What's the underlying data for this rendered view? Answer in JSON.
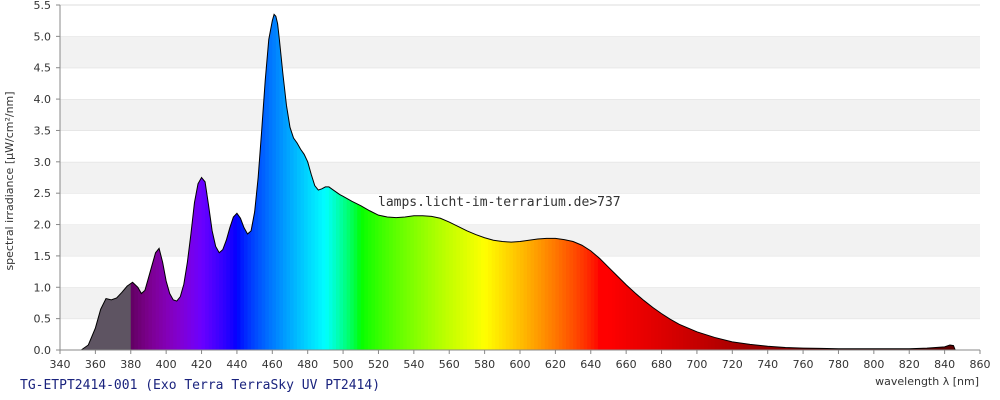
{
  "chart_data": {
    "type": "area",
    "title": "",
    "caption": "TG-ETPT2414-001 (Exo Terra TerraSky UV PT2414)",
    "watermark": "lamps.licht-im-terrarium.de>737",
    "xlabel": "wavelength λ [nm]",
    "ylabel": "spectral irradiance [µW/cm²/nm]",
    "xlim": [
      340,
      860
    ],
    "ylim": [
      0,
      5.5
    ],
    "x_ticks": [
      340,
      360,
      380,
      400,
      420,
      440,
      460,
      480,
      500,
      520,
      540,
      560,
      580,
      600,
      620,
      640,
      660,
      680,
      700,
      720,
      740,
      760,
      780,
      800,
      820,
      840,
      860
    ],
    "y_ticks": [
      0.0,
      0.5,
      1.0,
      1.5,
      2.0,
      2.5,
      3.0,
      3.5,
      4.0,
      4.5,
      5.0,
      5.5
    ],
    "y_tick_labels": [
      "0.0",
      "0.5",
      "1.0",
      "1.5",
      "2.0",
      "2.5",
      "3.0",
      "3.5",
      "4.0",
      "4.5",
      "5.0",
      "5.5"
    ],
    "grid": "horizontal banded",
    "fill": "spectral colors by wavelength",
    "series": [
      {
        "x": [
          352,
          356,
          360,
          363,
          366,
          369,
          372,
          375,
          378,
          381,
          384,
          386,
          388,
          390,
          392,
          394,
          396,
          398,
          400,
          402,
          404,
          406,
          408,
          410,
          412,
          414,
          416,
          418,
          420,
          422,
          424,
          426,
          428,
          430,
          432,
          434,
          436,
          438,
          440,
          442,
          444,
          446,
          448,
          450,
          452,
          454,
          456,
          458,
          460,
          461,
          462,
          463,
          464,
          466,
          468,
          470,
          472,
          474,
          476,
          478,
          480,
          482,
          484,
          486,
          488,
          490,
          492,
          494,
          496,
          498,
          500,
          505,
          510,
          515,
          520,
          525,
          530,
          535,
          540,
          545,
          550,
          555,
          560,
          565,
          570,
          575,
          580,
          585,
          590,
          595,
          600,
          605,
          610,
          615,
          620,
          625,
          630,
          635,
          640,
          645,
          650,
          655,
          660,
          665,
          670,
          675,
          680,
          685,
          690,
          695,
          700,
          710,
          720,
          730,
          740,
          750,
          760,
          770,
          780,
          790,
          800,
          810,
          820,
          830,
          840,
          843,
          845,
          846
        ],
        "y": [
          0.0,
          0.08,
          0.35,
          0.65,
          0.82,
          0.8,
          0.83,
          0.92,
          1.02,
          1.08,
          1.0,
          0.9,
          0.95,
          1.15,
          1.35,
          1.55,
          1.62,
          1.4,
          1.1,
          0.9,
          0.8,
          0.78,
          0.85,
          1.05,
          1.4,
          1.85,
          2.35,
          2.65,
          2.75,
          2.68,
          2.3,
          1.9,
          1.65,
          1.55,
          1.6,
          1.75,
          1.95,
          2.12,
          2.18,
          2.1,
          1.95,
          1.85,
          1.9,
          2.2,
          2.75,
          3.5,
          4.3,
          4.95,
          5.25,
          5.35,
          5.32,
          5.2,
          4.95,
          4.4,
          3.9,
          3.55,
          3.38,
          3.3,
          3.2,
          3.12,
          3.0,
          2.8,
          2.62,
          2.55,
          2.57,
          2.6,
          2.6,
          2.56,
          2.52,
          2.48,
          2.45,
          2.37,
          2.3,
          2.22,
          2.15,
          2.12,
          2.11,
          2.12,
          2.14,
          2.14,
          2.13,
          2.1,
          2.04,
          1.97,
          1.9,
          1.84,
          1.79,
          1.75,
          1.73,
          1.72,
          1.73,
          1.75,
          1.77,
          1.78,
          1.78,
          1.76,
          1.73,
          1.67,
          1.58,
          1.46,
          1.32,
          1.18,
          1.04,
          0.91,
          0.79,
          0.68,
          0.58,
          0.49,
          0.41,
          0.35,
          0.29,
          0.2,
          0.13,
          0.09,
          0.06,
          0.04,
          0.03,
          0.025,
          0.02,
          0.02,
          0.02,
          0.02,
          0.02,
          0.03,
          0.05,
          0.08,
          0.07,
          0.0
        ]
      }
    ]
  }
}
